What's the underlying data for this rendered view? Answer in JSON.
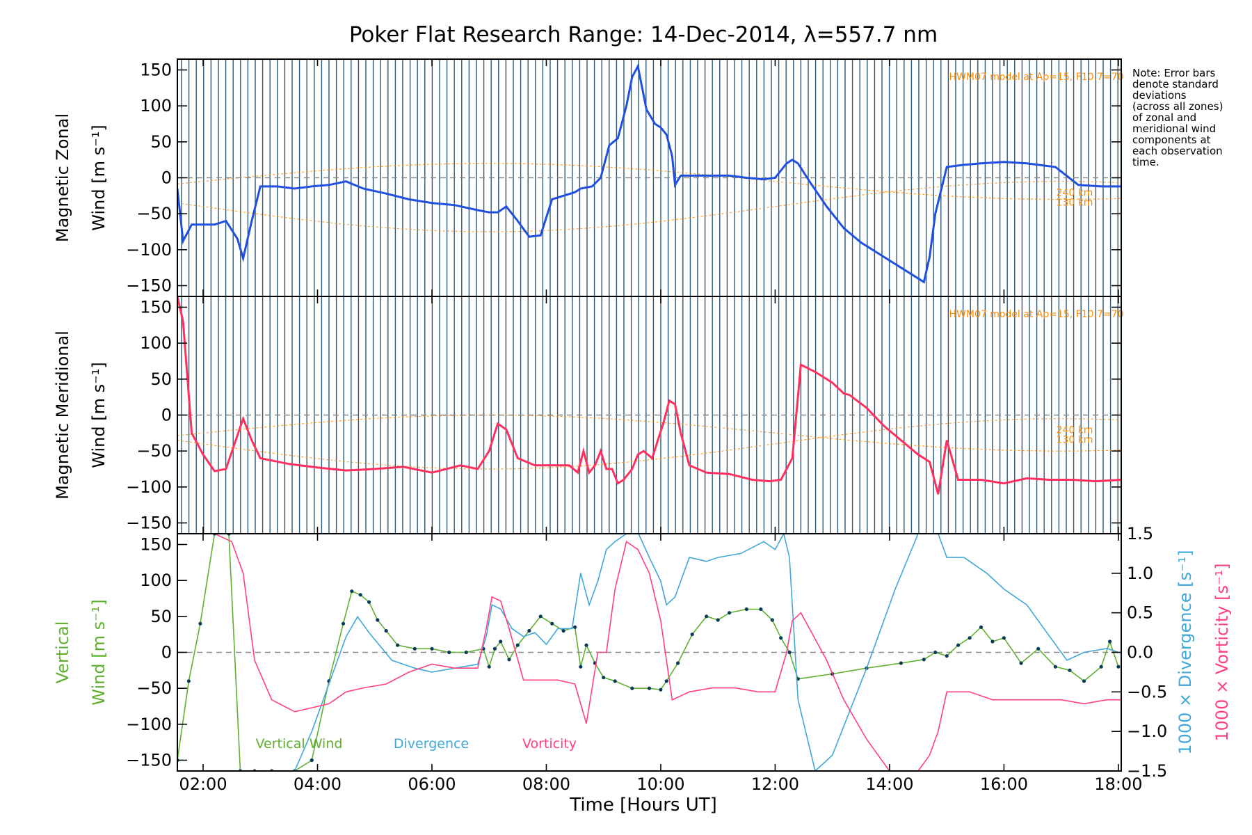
{
  "chart_data": {
    "type": "line",
    "title": "Poker Flat Research Range: 14-Dec-2014, λ=557.7 nm",
    "xlabel": "Time [Hours UT]",
    "x_units": "hours UT",
    "x_range": [
      1.55,
      18.05
    ],
    "x_ticks": [
      2,
      4,
      6,
      8,
      10,
      12,
      14,
      16,
      18
    ],
    "x_tick_labels": [
      "02:00",
      "04:00",
      "06:00",
      "08:00",
      "10:00",
      "12:00",
      "14:00",
      "16:00",
      "18:00"
    ],
    "note": [
      "Note: Error bars",
      "denote standard",
      "deviations",
      "(across all zones)",
      "of zonal and",
      "meridional wind",
      "components at",
      "each observation",
      "time."
    ],
    "panels": [
      {
        "ylabel_line1": "Magnetic Zonal",
        "ylabel_line2": "Wind [m s⁻¹]",
        "ylim": [
          -165,
          165
        ],
        "y_ticks": [
          -150,
          -100,
          -50,
          0,
          50,
          100,
          150
        ],
        "y_tick_labels": [
          "−150",
          "−100",
          "−50",
          "0",
          "50",
          "100",
          "150"
        ],
        "model_label": "HWM07 model at Ap=15, F10.7=70",
        "altitude_labels": [
          "240 km",
          "130 km"
        ],
        "series": [
          {
            "color": "#2050e0",
            "x": [
              1.55,
              1.65,
              1.8,
              2.0,
              2.2,
              2.4,
              2.6,
              2.7,
              2.85,
              3.0,
              3.3,
              3.6,
              3.9,
              4.2,
              4.5,
              4.8,
              5.2,
              5.6,
              6.0,
              6.4,
              6.8,
              7.0,
              7.15,
              7.3,
              7.5,
              7.7,
              7.9,
              8.1,
              8.3,
              8.5,
              8.6,
              8.8,
              8.95,
              9.1,
              9.25,
              9.4,
              9.5,
              9.6,
              9.75,
              9.9,
              10.0,
              10.1,
              10.2,
              10.25,
              10.35,
              10.6,
              10.9,
              11.2,
              11.5,
              11.8,
              12.0,
              12.2,
              12.3,
              12.4,
              12.6,
              12.9,
              13.2,
              13.5,
              13.8,
              14.2,
              14.6,
              14.7,
              14.8,
              15.0,
              15.3,
              15.6,
              16.0,
              16.4,
              16.6,
              16.9,
              17.3,
              17.7,
              18.05
            ],
            "y": [
              -15,
              -88,
              -65,
              -65,
              -65,
              -60,
              -85,
              -112,
              -60,
              -12,
              -12,
              -15,
              -12,
              -10,
              -5,
              -15,
              -22,
              -30,
              -35,
              -38,
              -45,
              -48,
              -48,
              -40,
              -60,
              -82,
              -80,
              -30,
              -25,
              -20,
              -15,
              -12,
              0,
              45,
              55,
              100,
              140,
              155,
              95,
              75,
              70,
              60,
              30,
              -10,
              3,
              3,
              3,
              3,
              0,
              -2,
              0,
              20,
              25,
              20,
              -5,
              -40,
              -70,
              -90,
              -105,
              -125,
              -145,
              -110,
              -50,
              15,
              18,
              20,
              22,
              20,
              18,
              15,
              -10,
              -12,
              -12
            ]
          }
        ]
      },
      {
        "ylabel_line1": "Magnetic Meridional",
        "ylabel_line2": "Wind [m s⁻¹]",
        "ylim": [
          -165,
          165
        ],
        "y_ticks": [
          -150,
          -100,
          -50,
          0,
          50,
          100,
          150
        ],
        "y_tick_labels": [
          "−150",
          "−100",
          "−50",
          "0",
          "50",
          "100",
          "150"
        ],
        "model_label": "HWM07 model at Ap=15, F10.7=70",
        "altitude_labels": [
          "240 km",
          "130 km"
        ],
        "series": [
          {
            "color": "#ff3060",
            "x": [
              1.55,
              1.65,
              1.8,
              2.0,
              2.2,
              2.4,
              2.55,
              2.7,
              2.85,
              3.0,
              3.5,
              4.0,
              4.5,
              5.0,
              5.5,
              6.0,
              6.5,
              6.8,
              7.0,
              7.15,
              7.3,
              7.5,
              7.8,
              8.1,
              8.4,
              8.55,
              8.65,
              8.75,
              8.85,
              8.95,
              9.05,
              9.15,
              9.25,
              9.35,
              9.5,
              9.6,
              9.7,
              9.85,
              9.95,
              10.05,
              10.15,
              10.25,
              10.35,
              10.5,
              10.8,
              11.2,
              11.6,
              11.9,
              12.1,
              12.3,
              12.45,
              12.7,
              13.0,
              13.2,
              13.3,
              13.6,
              13.9,
              14.2,
              14.5,
              14.7,
              14.85,
              15.0,
              15.2,
              15.6,
              16.0,
              16.4,
              16.8,
              17.2,
              17.6,
              18.05
            ],
            "y": [
              165,
              130,
              -25,
              -55,
              -78,
              -75,
              -40,
              -5,
              -35,
              -60,
              -68,
              -73,
              -77,
              -75,
              -72,
              -80,
              -70,
              -75,
              -50,
              -12,
              -20,
              -60,
              -70,
              -70,
              -70,
              -80,
              -50,
              -80,
              -70,
              -50,
              -75,
              -75,
              -95,
              -90,
              -75,
              -55,
              -50,
              -60,
              -35,
              -10,
              20,
              15,
              -25,
              -70,
              -80,
              -82,
              -90,
              -92,
              -90,
              -60,
              70,
              60,
              45,
              30,
              28,
              10,
              -15,
              -35,
              -55,
              -65,
              -110,
              -35,
              -90,
              -90,
              -95,
              -88,
              -90,
              -90,
              -92,
              -90
            ]
          }
        ]
      },
      {
        "ylabel_line1": "Vertical",
        "ylabel_line2": "Wind [m s⁻¹]",
        "ylim": [
          -165,
          165
        ],
        "y_ticks": [
          -150,
          -100,
          -50,
          0,
          50,
          100,
          150
        ],
        "y_tick_labels": [
          "−150",
          "−100",
          "−50",
          "0",
          "50",
          "100",
          "150"
        ],
        "right_axis_label1": "1000 × Divergence [s⁻¹]",
        "right_axis_label2": "1000 × Vorticity [s⁻¹]",
        "right_ylim": [
          -1.5,
          1.5
        ],
        "right_ticks": [
          -1.5,
          -1.0,
          -0.5,
          0.0,
          0.5,
          1.0,
          1.5
        ],
        "right_tick_labels": [
          "−1.5",
          "−1.0",
          "−0.5",
          "0.0",
          "0.5",
          "1.0",
          "1.5"
        ],
        "legend": [
          "Vertical Wind",
          "Divergence",
          "Vorticity"
        ],
        "series": [
          {
            "name": "Vertical Wind",
            "color": "#60b030",
            "axis": "left",
            "x": [
              1.55,
              1.75,
              1.95,
              2.2,
              2.45,
              2.65,
              2.9,
              3.2,
              3.6,
              3.9,
              4.2,
              4.45,
              4.6,
              4.75,
              4.9,
              5.05,
              5.2,
              5.4,
              5.7,
              6.0,
              6.3,
              6.6,
              6.9,
              7.0,
              7.1,
              7.2,
              7.35,
              7.5,
              7.7,
              7.9,
              8.1,
              8.3,
              8.5,
              8.6,
              8.7,
              8.85,
              9.0,
              9.2,
              9.5,
              9.8,
              10.0,
              10.1,
              10.3,
              10.55,
              10.8,
              11.0,
              11.2,
              11.5,
              11.75,
              11.95,
              12.1,
              12.25,
              12.4,
              13.0,
              13.6,
              14.2,
              14.6,
              14.8,
              15.0,
              15.2,
              15.4,
              15.6,
              15.8,
              16.0,
              16.3,
              16.6,
              16.9,
              17.15,
              17.4,
              17.7,
              17.85,
              18.0
            ],
            "y": [
              -150,
              -40,
              40,
              165,
              165,
              -165,
              -165,
              -165,
              -165,
              -150,
              -40,
              40,
              85,
              80,
              70,
              45,
              30,
              10,
              5,
              5,
              0,
              0,
              5,
              -20,
              5,
              15,
              -10,
              10,
              30,
              50,
              40,
              30,
              35,
              -20,
              10,
              -15,
              -35,
              -40,
              -50,
              -50,
              -52,
              -40,
              -15,
              25,
              50,
              45,
              55,
              60,
              60,
              45,
              20,
              0,
              -37,
              -30,
              -22,
              -15,
              -10,
              0,
              -5,
              10,
              20,
              35,
              15,
              20,
              -15,
              5,
              -20,
              -25,
              -40,
              -20,
              15,
              -20
            ]
          },
          {
            "name": "Divergence",
            "color": "#40a8d8",
            "axis": "right",
            "x": [
              3.6,
              3.9,
              4.2,
              4.5,
              4.7,
              4.9,
              5.3,
              5.7,
              6.0,
              6.4,
              6.8,
              6.95,
              7.05,
              7.2,
              7.4,
              7.6,
              7.8,
              8.0,
              8.2,
              8.45,
              8.6,
              8.75,
              8.9,
              9.05,
              9.2,
              9.4,
              9.55,
              9.8,
              10.0,
              10.1,
              10.25,
              10.5,
              10.8,
              11.0,
              11.4,
              11.8,
              12.0,
              12.15,
              12.25,
              12.4,
              12.7,
              13.0,
              13.6,
              14.1,
              14.5,
              14.8,
              15.0,
              15.3,
              15.7,
              16.0,
              16.4,
              16.8,
              17.1,
              17.4,
              17.8,
              18.0
            ],
            "y": [
              -1.5,
              -1.0,
              -0.4,
              0.2,
              0.45,
              0.25,
              -0.1,
              -0.2,
              -0.25,
              -0.2,
              -0.15,
              0.2,
              0.6,
              0.55,
              0.3,
              0.2,
              0.25,
              0.1,
              0.3,
              0.3,
              1.0,
              0.6,
              0.9,
              1.3,
              1.4,
              1.5,
              1.6,
              1.2,
              0.9,
              0.6,
              0.7,
              1.2,
              1.15,
              1.2,
              1.25,
              1.4,
              1.3,
              1.5,
              1.2,
              -0.6,
              -1.5,
              -1.3,
              -0.2,
              0.8,
              1.5,
              1.6,
              1.2,
              1.2,
              1.0,
              0.8,
              0.6,
              0.2,
              -0.1,
              0.0,
              0.05,
              0.0
            ]
          },
          {
            "name": "Vorticity",
            "color": "#ff4080",
            "axis": "right",
            "x": [
              1.55,
              1.9,
              2.2,
              2.5,
              2.7,
              2.9,
              3.2,
              3.6,
              3.9,
              4.2,
              4.5,
              4.8,
              5.2,
              5.6,
              6.0,
              6.4,
              6.8,
              6.95,
              7.05,
              7.2,
              7.35,
              7.6,
              7.9,
              8.2,
              8.5,
              8.7,
              8.9,
              9.05,
              9.2,
              9.4,
              9.6,
              9.8,
              10.0,
              10.2,
              10.5,
              10.9,
              11.3,
              11.7,
              12.0,
              12.2,
              12.3,
              12.45,
              12.6,
              12.9,
              13.2,
              13.6,
              14.0,
              14.5,
              14.7,
              14.85,
              15.0,
              15.4,
              15.8,
              16.2,
              16.6,
              17.0,
              17.4,
              17.8,
              18.05
            ],
            "y": [
              1.5,
              1.5,
              1.5,
              1.4,
              1.0,
              -0.1,
              -0.6,
              -0.75,
              -0.7,
              -0.65,
              -0.5,
              -0.45,
              -0.4,
              -0.25,
              -0.15,
              -0.2,
              -0.2,
              0.3,
              0.7,
              0.65,
              0.3,
              -0.35,
              -0.35,
              -0.35,
              -0.4,
              -0.9,
              0.0,
              0.0,
              0.8,
              1.4,
              1.3,
              1.0,
              0.4,
              -0.6,
              -0.5,
              -0.45,
              -0.45,
              -0.5,
              -0.5,
              0.0,
              0.4,
              0.5,
              0.3,
              -0.1,
              -0.6,
              -1.1,
              -1.5,
              -1.5,
              -1.3,
              -1.0,
              -0.5,
              -0.5,
              -0.6,
              -0.6,
              -0.6,
              -0.6,
              -0.65,
              -0.6,
              -0.6
            ]
          }
        ]
      }
    ]
  },
  "colors": {
    "background_line": "#0b3b5a",
    "model_line": "#ff8c00",
    "zero_line": "#888888"
  }
}
